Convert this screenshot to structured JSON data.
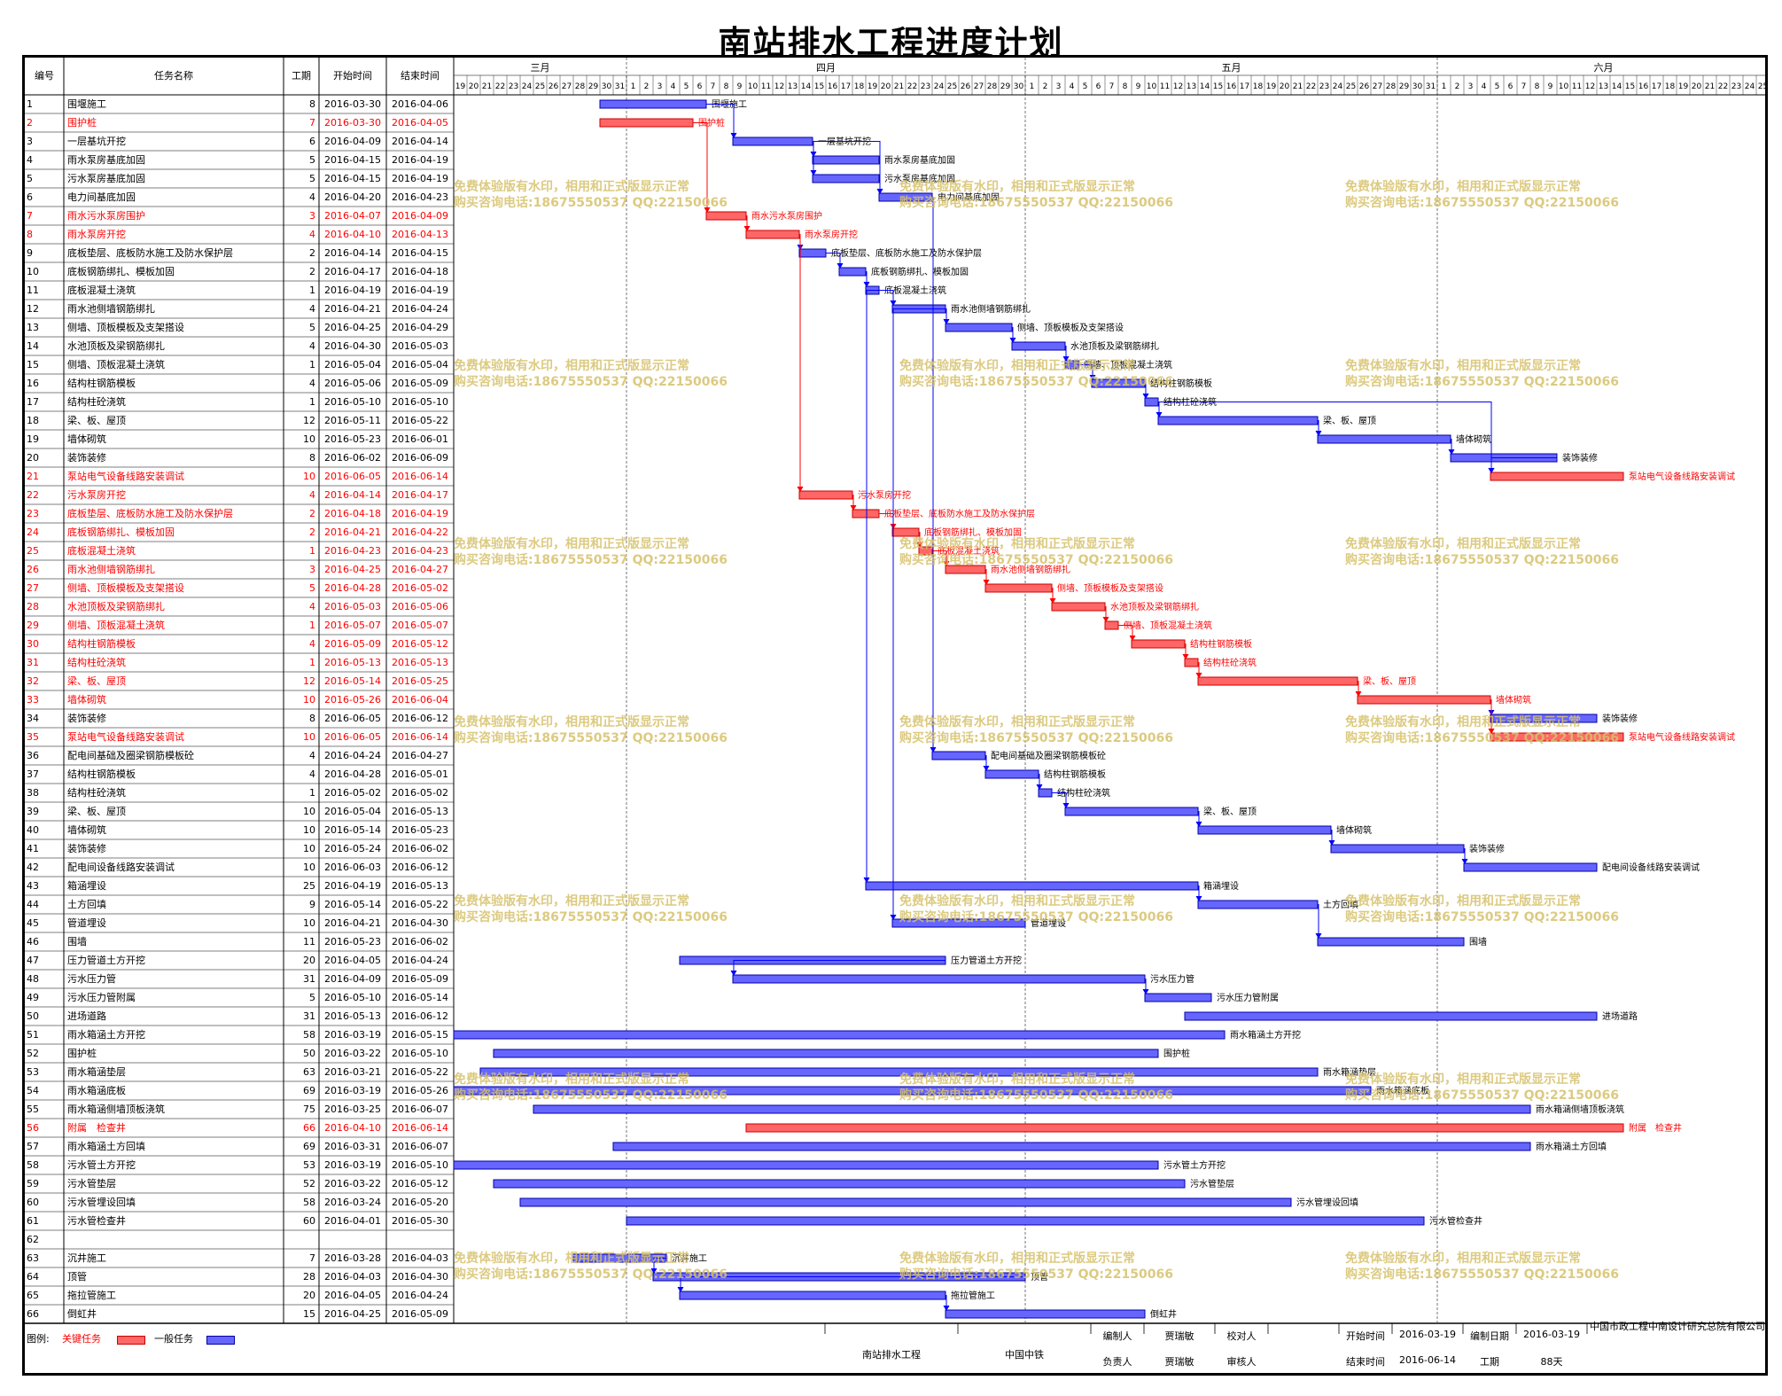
{
  "title": "南站排水工程进度计划",
  "headers": {
    "no": "编号",
    "name": "任务名称",
    "dur": "工期",
    "start": "开始时间",
    "end": "结束时间"
  },
  "months": [
    "三月",
    "四月",
    "五月",
    "六月"
  ],
  "colors": {
    "critical": "#ff6666",
    "normal": "#6666ff",
    "critical_text": "#ff0000",
    "link_blue": "#0000ff",
    "link_red": "#ff0000"
  },
  "watermark": {
    "line1": "免费体验版有水印，相用和正式版显示正常",
    "line2": "购买咨询电话:18675550537 QQ:22150066"
  },
  "chart_data": {
    "type": "gantt",
    "title": "南站排水工程进度计划",
    "x_range": [
      "2016-03-19",
      "2016-06-25"
    ],
    "tasks": [
      {
        "no": "1",
        "name": "围堰施工",
        "dur": "8",
        "start": "2016-03-30",
        "end": "2016-04-06",
        "critical": false
      },
      {
        "no": "2",
        "name": "围护桩",
        "dur": "7",
        "start": "2016-03-30",
        "end": "2016-04-05",
        "critical": true
      },
      {
        "no": "3",
        "name": "一层基坑开挖",
        "dur": "6",
        "start": "2016-04-09",
        "end": "2016-04-14",
        "critical": false
      },
      {
        "no": "4",
        "name": "雨水泵房基底加固",
        "dur": "5",
        "start": "2016-04-15",
        "end": "2016-04-19",
        "critical": false
      },
      {
        "no": "5",
        "name": "污水泵房基底加固",
        "dur": "5",
        "start": "2016-04-15",
        "end": "2016-04-19",
        "critical": false
      },
      {
        "no": "6",
        "name": "电力间基底加固",
        "dur": "4",
        "start": "2016-04-20",
        "end": "2016-04-23",
        "critical": false
      },
      {
        "no": "7",
        "name": "雨水污水泵房围护",
        "dur": "3",
        "start": "2016-04-07",
        "end": "2016-04-09",
        "critical": true
      },
      {
        "no": "8",
        "name": "雨水泵房开挖",
        "dur": "4",
        "start": "2016-04-10",
        "end": "2016-04-13",
        "critical": true
      },
      {
        "no": "9",
        "name": "底板垫层、底板防水施工及防水保护层",
        "dur": "2",
        "start": "2016-04-14",
        "end": "2016-04-15",
        "critical": false
      },
      {
        "no": "10",
        "name": "底板钢筋绑扎、模板加固",
        "dur": "2",
        "start": "2016-04-17",
        "end": "2016-04-18",
        "critical": false
      },
      {
        "no": "11",
        "name": "底板混凝土浇筑",
        "dur": "1",
        "start": "2016-04-19",
        "end": "2016-04-19",
        "critical": false
      },
      {
        "no": "12",
        "name": "雨水池侧墙钢筋绑扎",
        "dur": "4",
        "start": "2016-04-21",
        "end": "2016-04-24",
        "critical": false
      },
      {
        "no": "13",
        "name": "侧墙、顶板模板及支架搭设",
        "dur": "5",
        "start": "2016-04-25",
        "end": "2016-04-29",
        "critical": false
      },
      {
        "no": "14",
        "name": "水池顶板及梁钢筋绑扎",
        "dur": "4",
        "start": "2016-04-30",
        "end": "2016-05-03",
        "critical": false
      },
      {
        "no": "15",
        "name": "侧墙、顶板混凝土浇筑",
        "dur": "1",
        "start": "2016-05-04",
        "end": "2016-05-04",
        "critical": false
      },
      {
        "no": "16",
        "name": "结构柱钢筋模板",
        "dur": "4",
        "start": "2016-05-06",
        "end": "2016-05-09",
        "critical": false
      },
      {
        "no": "17",
        "name": "结构柱砼浇筑",
        "dur": "1",
        "start": "2016-05-10",
        "end": "2016-05-10",
        "critical": false
      },
      {
        "no": "18",
        "name": "梁、板、屋顶",
        "dur": "12",
        "start": "2016-05-11",
        "end": "2016-05-22",
        "critical": false
      },
      {
        "no": "19",
        "name": "墙体砌筑",
        "dur": "10",
        "start": "2016-05-23",
        "end": "2016-06-01",
        "critical": false
      },
      {
        "no": "20",
        "name": "装饰装修",
        "dur": "8",
        "start": "2016-06-02",
        "end": "2016-06-09",
        "critical": false
      },
      {
        "no": "21",
        "name": "泵站电气设备线路安装调试",
        "dur": "10",
        "start": "2016-06-05",
        "end": "2016-06-14",
        "critical": true
      },
      {
        "no": "22",
        "name": "污水泵房开挖",
        "dur": "4",
        "start": "2016-04-14",
        "end": "2016-04-17",
        "critical": true
      },
      {
        "no": "23",
        "name": "底板垫层、底板防水施工及防水保护层",
        "dur": "2",
        "start": "2016-04-18",
        "end": "2016-04-19",
        "critical": true
      },
      {
        "no": "24",
        "name": "底板钢筋绑扎、模板加固",
        "dur": "2",
        "start": "2016-04-21",
        "end": "2016-04-22",
        "critical": true
      },
      {
        "no": "25",
        "name": "底板混凝土浇筑",
        "dur": "1",
        "start": "2016-04-23",
        "end": "2016-04-23",
        "critical": true
      },
      {
        "no": "26",
        "name": "雨水池侧墙钢筋绑扎",
        "dur": "3",
        "start": "2016-04-25",
        "end": "2016-04-27",
        "critical": true
      },
      {
        "no": "27",
        "name": "侧墙、顶板模板及支架搭设",
        "dur": "5",
        "start": "2016-04-28",
        "end": "2016-05-02",
        "critical": true
      },
      {
        "no": "28",
        "name": "水池顶板及梁钢筋绑扎",
        "dur": "4",
        "start": "2016-05-03",
        "end": "2016-05-06",
        "critical": true
      },
      {
        "no": "29",
        "name": "侧墙、顶板混凝土浇筑",
        "dur": "1",
        "start": "2016-05-07",
        "end": "2016-05-07",
        "critical": true
      },
      {
        "no": "30",
        "name": "结构柱钢筋模板",
        "dur": "4",
        "start": "2016-05-09",
        "end": "2016-05-12",
        "critical": true
      },
      {
        "no": "31",
        "name": "结构柱砼浇筑",
        "dur": "1",
        "start": "2016-05-13",
        "end": "2016-05-13",
        "critical": true
      },
      {
        "no": "32",
        "name": "梁、板、屋顶",
        "dur": "12",
        "start": "2016-05-14",
        "end": "2016-05-25",
        "critical": true
      },
      {
        "no": "33",
        "name": "墙体砌筑",
        "dur": "10",
        "start": "2016-05-26",
        "end": "2016-06-04",
        "critical": true
      },
      {
        "no": "34",
        "name": "装饰装修",
        "dur": "8",
        "start": "2016-06-05",
        "end": "2016-06-12",
        "critical": false
      },
      {
        "no": "35",
        "name": "泵站电气设备线路安装调试",
        "dur": "10",
        "start": "2016-06-05",
        "end": "2016-06-14",
        "critical": true
      },
      {
        "no": "36",
        "name": "配电间基础及圈梁钢筋模板砼",
        "dur": "4",
        "start": "2016-04-24",
        "end": "2016-04-27",
        "critical": false
      },
      {
        "no": "37",
        "name": "结构柱钢筋模板",
        "dur": "4",
        "start": "2016-04-28",
        "end": "2016-05-01",
        "critical": false
      },
      {
        "no": "38",
        "name": "结构柱砼浇筑",
        "dur": "1",
        "start": "2016-05-02",
        "end": "2016-05-02",
        "critical": false
      },
      {
        "no": "39",
        "name": "梁、板、屋顶",
        "dur": "10",
        "start": "2016-05-04",
        "end": "2016-05-13",
        "critical": false
      },
      {
        "no": "40",
        "name": "墙体砌筑",
        "dur": "10",
        "start": "2016-05-14",
        "end": "2016-05-23",
        "critical": false
      },
      {
        "no": "41",
        "name": "装饰装修",
        "dur": "10",
        "start": "2016-05-24",
        "end": "2016-06-02",
        "critical": false
      },
      {
        "no": "42",
        "name": "配电间设备线路安装调试",
        "dur": "10",
        "start": "2016-06-03",
        "end": "2016-06-12",
        "critical": false
      },
      {
        "no": "43",
        "name": "箱涵埋设",
        "dur": "25",
        "start": "2016-04-19",
        "end": "2016-05-13",
        "critical": false
      },
      {
        "no": "44",
        "name": "土方回填",
        "dur": "9",
        "start": "2016-05-14",
        "end": "2016-05-22",
        "critical": false
      },
      {
        "no": "45",
        "name": "管道埋设",
        "dur": "10",
        "start": "2016-04-21",
        "end": "2016-04-30",
        "critical": false
      },
      {
        "no": "46",
        "name": "围墙",
        "dur": "11",
        "start": "2016-05-23",
        "end": "2016-06-02",
        "critical": false
      },
      {
        "no": "47",
        "name": "压力管道土方开挖",
        "dur": "20",
        "start": "2016-04-05",
        "end": "2016-04-24",
        "critical": false
      },
      {
        "no": "48",
        "name": "污水压力管",
        "dur": "31",
        "start": "2016-04-09",
        "end": "2016-05-09",
        "critical": false
      },
      {
        "no": "49",
        "name": "污水压力管附属",
        "dur": "5",
        "start": "2016-05-10",
        "end": "2016-05-14",
        "critical": false
      },
      {
        "no": "50",
        "name": "进场道路",
        "dur": "31",
        "start": "2016-05-13",
        "end": "2016-06-12",
        "critical": false
      },
      {
        "no": "51",
        "name": "雨水箱涵土方开挖",
        "dur": "58",
        "start": "2016-03-19",
        "end": "2016-05-15",
        "critical": false
      },
      {
        "no": "52",
        "name": "围护桩",
        "dur": "50",
        "start": "2016-03-22",
        "end": "2016-05-10",
        "critical": false
      },
      {
        "no": "53",
        "name": "雨水箱涵垫层",
        "dur": "63",
        "start": "2016-03-21",
        "end": "2016-05-22",
        "critical": false
      },
      {
        "no": "54",
        "name": "雨水箱涵底板",
        "dur": "69",
        "start": "2016-03-19",
        "end": "2016-05-26",
        "critical": false
      },
      {
        "no": "55",
        "name": "雨水箱涵侧墙顶板浇筑",
        "dur": "75",
        "start": "2016-03-25",
        "end": "2016-06-07",
        "critical": false
      },
      {
        "no": "56",
        "name": "附属　检查井",
        "dur": "66",
        "start": "2016-04-10",
        "end": "2016-06-14",
        "critical": true
      },
      {
        "no": "57",
        "name": "雨水箱涵土方回填",
        "dur": "69",
        "start": "2016-03-31",
        "end": "2016-06-07",
        "critical": false
      },
      {
        "no": "58",
        "name": "污水管土方开挖",
        "dur": "53",
        "start": "2016-03-19",
        "end": "2016-05-10",
        "critical": false
      },
      {
        "no": "59",
        "name": "污水管垫层",
        "dur": "52",
        "start": "2016-03-22",
        "end": "2016-05-12",
        "critical": false
      },
      {
        "no": "60",
        "name": "污水管埋设回填",
        "dur": "58",
        "start": "2016-03-24",
        "end": "2016-05-20",
        "critical": false
      },
      {
        "no": "61",
        "name": "污水管检查井",
        "dur": "60",
        "start": "2016-04-01",
        "end": "2016-05-30",
        "critical": false
      },
      {
        "no": "62",
        "name": "",
        "dur": "",
        "start": "",
        "end": "",
        "critical": false
      },
      {
        "no": "63",
        "name": "沉井施工",
        "dur": "7",
        "start": "2016-03-28",
        "end": "2016-04-03",
        "critical": false
      },
      {
        "no": "64",
        "name": "顶管",
        "dur": "28",
        "start": "2016-04-03",
        "end": "2016-04-30",
        "critical": false
      },
      {
        "no": "65",
        "name": "拖拉管施工",
        "dur": "20",
        "start": "2016-04-05",
        "end": "2016-04-24",
        "critical": false
      },
      {
        "no": "66",
        "name": "倒虹井",
        "dur": "15",
        "start": "2016-04-25",
        "end": "2016-05-09",
        "critical": false
      }
    ],
    "links": [
      [
        1,
        3
      ],
      [
        2,
        7
      ],
      [
        3,
        4
      ],
      [
        3,
        5
      ],
      [
        3,
        6
      ],
      [
        7,
        8
      ],
      [
        8,
        9
      ],
      [
        8,
        22
      ],
      [
        9,
        10
      ],
      [
        10,
        11
      ],
      [
        11,
        12
      ],
      [
        12,
        13
      ],
      [
        13,
        14
      ],
      [
        14,
        15
      ],
      [
        15,
        16
      ],
      [
        16,
        17
      ],
      [
        17,
        18
      ],
      [
        17,
        21
      ],
      [
        18,
        19
      ],
      [
        19,
        20
      ],
      [
        20,
        21
      ],
      [
        22,
        23
      ],
      [
        23,
        24
      ],
      [
        24,
        25
      ],
      [
        25,
        26
      ],
      [
        26,
        27
      ],
      [
        27,
        28
      ],
      [
        28,
        29
      ],
      [
        29,
        30
      ],
      [
        30,
        31
      ],
      [
        31,
        32
      ],
      [
        32,
        33
      ],
      [
        33,
        34
      ],
      [
        33,
        35
      ],
      [
        6,
        36
      ],
      [
        36,
        37
      ],
      [
        37,
        38
      ],
      [
        38,
        39
      ],
      [
        39,
        40
      ],
      [
        40,
        41
      ],
      [
        41,
        42
      ],
      [
        11,
        43
      ],
      [
        43,
        44
      ],
      [
        44,
        46
      ],
      [
        12,
        45
      ],
      [
        47,
        48
      ],
      [
        48,
        49
      ],
      [
        63,
        64
      ],
      [
        64,
        65
      ],
      [
        65,
        66
      ]
    ]
  },
  "legend": {
    "label": "图例:",
    "critical": "关键任务",
    "normal": "一般任务"
  },
  "footer": {
    "project": "南站排水工程",
    "company": "中国中铁",
    "compiler_label": "编制人",
    "compiler": "贾瑞敏",
    "checker_label": "校对人",
    "checker": "",
    "responsible_label": "负责人",
    "responsible": "贾瑞敏",
    "reviewer_label": "审核人",
    "reviewer": "",
    "start_label": "开始时间",
    "start": "2016-03-19",
    "end_label": "结束时间",
    "end": "2016-06-14",
    "compile_date_label": "编制日期",
    "compile_date": "2016-03-19",
    "duration_label": "工期",
    "duration": "88天",
    "org": "中国市政工程中南设计研究总院有限公司"
  }
}
